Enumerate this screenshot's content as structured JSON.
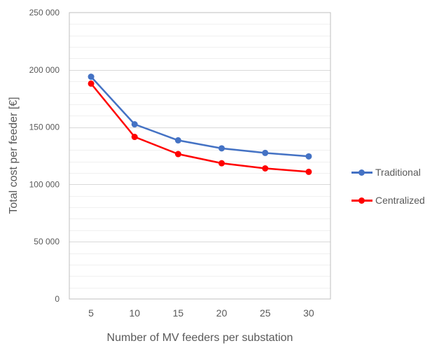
{
  "chart_data": {
    "type": "line",
    "title": "",
    "xlabel": "Number of MV feeders per substation",
    "ylabel": "Total cost per feeder [€]",
    "x": [
      5,
      10,
      15,
      20,
      25,
      30
    ],
    "x_tick_labels": [
      "5",
      "10",
      "15",
      "20",
      "25",
      "30"
    ],
    "ylim": [
      0,
      250000
    ],
    "y_tick_labels": [
      "0",
      "50 000",
      "100 000",
      "150 000",
      "200 000",
      "250 000"
    ],
    "grid": true,
    "legend_position": "right",
    "series": [
      {
        "name": "Traditional",
        "color": "#4472c4",
        "values": [
          194000,
          152500,
          138500,
          131500,
          127500,
          124500
        ]
      },
      {
        "name": "Centralized",
        "color": "#ff0000",
        "values": [
          188000,
          141500,
          126500,
          118500,
          114000,
          111000
        ]
      }
    ]
  }
}
